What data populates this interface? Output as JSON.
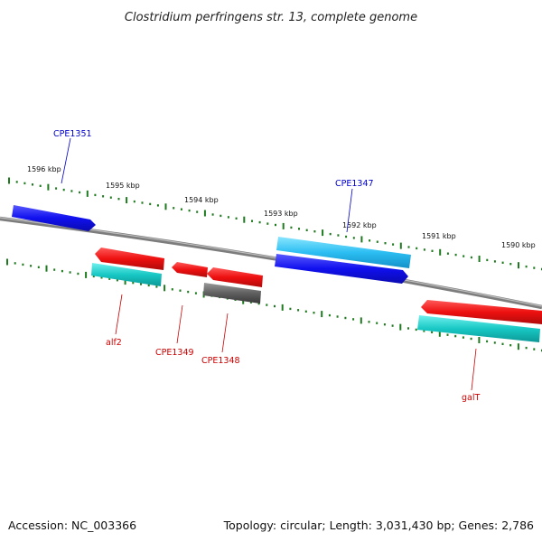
{
  "title": "Clostridium perfringens str. 13, complete genome",
  "scale_labels": [
    "1596 kbp",
    "1595 kbp",
    "1594 kbp",
    "1593 kbp",
    "1592 kbp",
    "1591 kbp",
    "1590 kbp"
  ],
  "genes": [
    {
      "id": "CPE1351",
      "label": "CPE1351",
      "strand": "+",
      "color": "#1818e0"
    },
    {
      "id": "CPE1347",
      "label": "CPE1347",
      "strand": "+",
      "color": "#1818e0"
    },
    {
      "id": "alf2",
      "label": "alf2",
      "strand": "-",
      "color": "#e01818"
    },
    {
      "id": "CPE1349",
      "label": "CPE1349",
      "strand": "-",
      "color": "#e01818"
    },
    {
      "id": "CPE1348",
      "label": "CPE1348",
      "strand": "-",
      "color": "#e01818"
    },
    {
      "id": "galT",
      "label": "galT",
      "strand": "-",
      "color": "#e01818"
    }
  ],
  "footer": {
    "accession": "Accession: NC_003366",
    "summary": "Topology: circular; Length: 3,031,430 bp; Genes: 2,786"
  },
  "colors": {
    "backbone": "#808080",
    "tick": "#1e7a1e",
    "forward_gene": "#1818e0",
    "reverse_gene": "#e01818",
    "forward_label": "#0000cc",
    "reverse_label": "#cc0000",
    "cds_cyan": "#00c8c8",
    "cds_light_blue": "#30c0f0",
    "pseudo_gray": "#555555"
  }
}
